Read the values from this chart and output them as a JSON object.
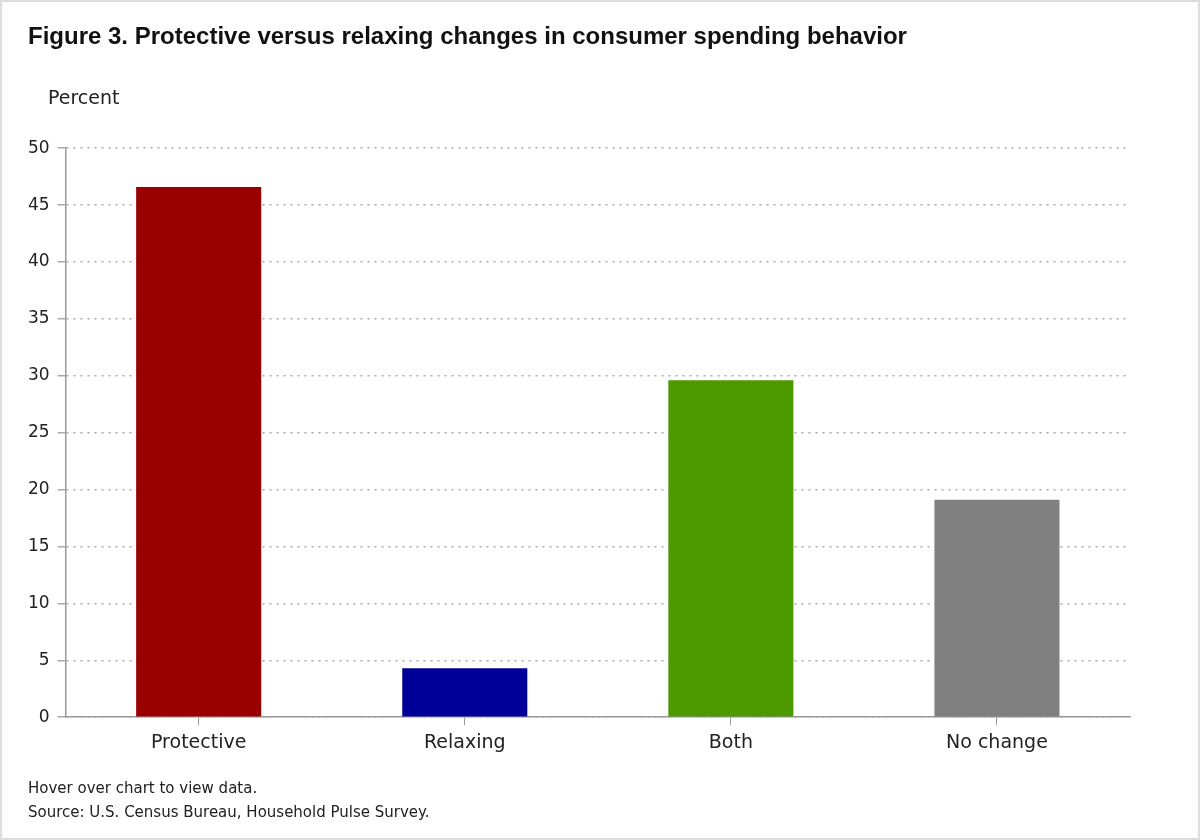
{
  "chart_data": {
    "type": "bar",
    "title": "Figure 3. Protective versus relaxing changes in consumer spending behavior",
    "ylabel": "Percent",
    "categories": [
      "Protective",
      "Relaxing",
      "Both",
      "No change"
    ],
    "values": [
      46.6,
      4.3,
      29.6,
      19.1
    ],
    "colors": [
      "#990000",
      "#000099",
      "#4c9900",
      "#808080"
    ],
    "ylim": [
      0,
      50
    ],
    "yticks": [
      0,
      5,
      10,
      15,
      20,
      25,
      30,
      35,
      40,
      45,
      50
    ],
    "grid": "y",
    "annotations": [
      "Hover over chart to view data.",
      "Source: U.S. Census Bureau, Household Pulse Survey."
    ]
  }
}
